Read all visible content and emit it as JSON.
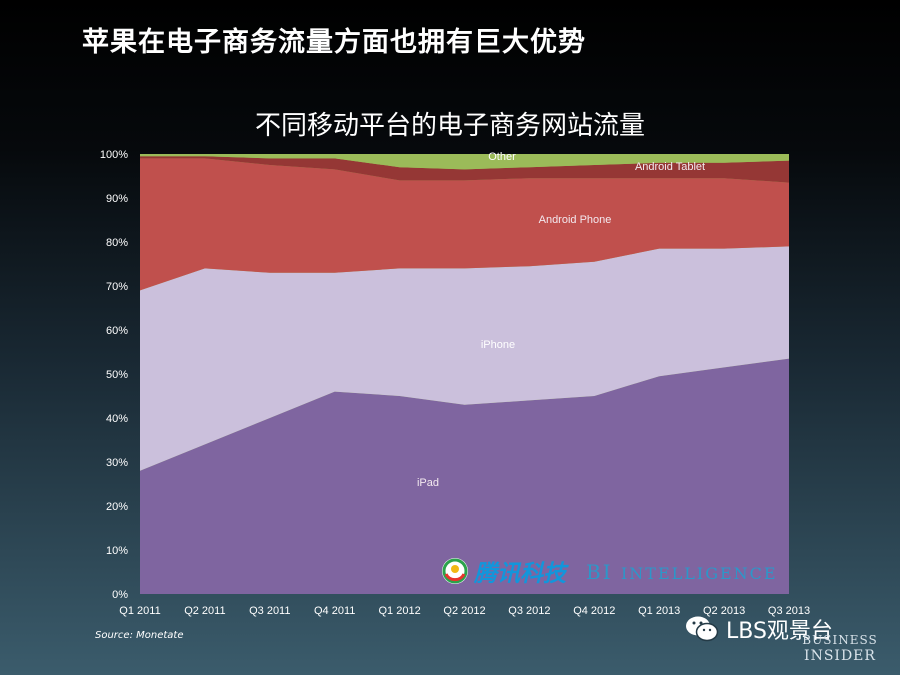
{
  "slide": {
    "title": "苹果在电子商务流量方面也拥有巨大优势",
    "source": "Source: Monetate"
  },
  "chart_data": {
    "type": "area",
    "stacked": true,
    "title": "不同移动平台的电子商务网站流量",
    "categories": [
      "Q1 2011",
      "Q2 2011",
      "Q3 2011",
      "Q4 2011",
      "Q1 2012",
      "Q2 2012",
      "Q3 2012",
      "Q4 2012",
      "Q1 2013",
      "Q2 2013",
      "Q3 2013"
    ],
    "y_ticks": [
      "0%",
      "10%",
      "20%",
      "30%",
      "40%",
      "50%",
      "60%",
      "70%",
      "80%",
      "90%",
      "100%"
    ],
    "ylim": [
      0,
      100
    ],
    "unit": "%",
    "series": [
      {
        "name": "iPad",
        "color": "#7f65a0",
        "values": [
          28,
          34,
          40,
          46,
          45,
          43,
          44,
          45,
          49.5,
          51.5,
          53.5
        ]
      },
      {
        "name": "iPhone",
        "color": "#cbc0dc",
        "values": [
          41,
          40,
          33,
          27,
          29,
          31,
          30.5,
          30.5,
          29,
          27,
          25.5
        ]
      },
      {
        "name": "Android Phone",
        "color": "#c0504d",
        "values": [
          30,
          25,
          24.5,
          23.5,
          20,
          20,
          20,
          19,
          16,
          16,
          14.5
        ]
      },
      {
        "name": "Android Tablet",
        "color": "#953735",
        "values": [
          0.5,
          0.5,
          1.5,
          2.5,
          3,
          2.5,
          2.5,
          3,
          3.5,
          3.5,
          5
        ]
      },
      {
        "name": "Other",
        "color": "#9bbb59",
        "values": [
          0.5,
          0.5,
          1,
          1,
          3,
          3.5,
          3,
          2.5,
          2,
          2,
          1.5
        ]
      }
    ]
  },
  "watermarks": {
    "tencent": "腾讯科技",
    "bi_intelligence_head": "BI ",
    "bi_intelligence_tail": "INTELLIGENCE",
    "wechat": "LBS观景台",
    "business": "BUSINESS",
    "insider": "INSIDER"
  }
}
